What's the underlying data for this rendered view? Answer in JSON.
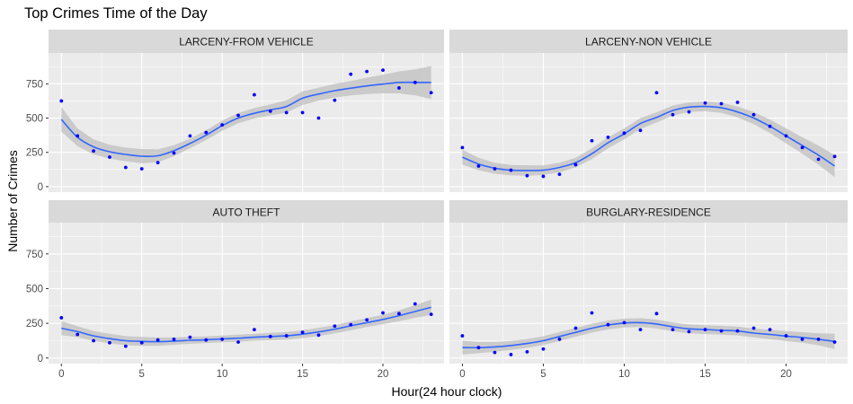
{
  "chart_data": {
    "type": "scatter",
    "title": "Top Crimes Time of the Day",
    "xlabel": "Hour(24 hour clock)",
    "ylabel": "Number of Crimes",
    "xlim": [
      -0.8,
      23.8
    ],
    "ylim": [
      -40,
      975
    ],
    "x_ticks": [
      0,
      5,
      10,
      15,
      20
    ],
    "y_ticks": [
      0,
      250,
      500,
      750
    ],
    "grid": true,
    "smooth": "loess with confidence band",
    "colors": {
      "panel_bg": "#ebebeb",
      "strip_bg": "#d9d9d9",
      "grid": "#ffffff",
      "points": "#0000ff",
      "smooth_line": "#3366ff",
      "ribbon": "#bfbfbf"
    },
    "panels": [
      {
        "name": "LARCENY-FROM VEHICLE",
        "x": [
          0,
          1,
          2,
          3,
          4,
          5,
          6,
          7,
          8,
          9,
          10,
          11,
          12,
          13,
          14,
          15,
          16,
          17,
          18,
          19,
          20,
          21,
          22,
          23
        ],
        "points": [
          625,
          370,
          260,
          215,
          140,
          130,
          175,
          245,
          370,
          395,
          450,
          520,
          670,
          550,
          540,
          540,
          500,
          630,
          820,
          840,
          850,
          720,
          760,
          685
        ],
        "smooth": [
          490,
          360,
          290,
          255,
          235,
          222,
          225,
          262,
          315,
          375,
          445,
          500,
          535,
          560,
          585,
          645,
          675,
          700,
          718,
          735,
          748,
          760,
          760,
          760
        ],
        "lower": [
          400,
          295,
          235,
          205,
          185,
          170,
          178,
          222,
          280,
          340,
          408,
          462,
          497,
          520,
          540,
          595,
          628,
          650,
          665,
          675,
          680,
          680,
          665,
          640
        ],
        "upper": [
          580,
          425,
          345,
          305,
          285,
          274,
          272,
          302,
          350,
          410,
          482,
          538,
          573,
          600,
          630,
          695,
          722,
          750,
          771,
          795,
          816,
          840,
          855,
          880
        ]
      },
      {
        "name": "LARCENY-NON VEHICLE",
        "x": [
          0,
          1,
          2,
          3,
          4,
          5,
          6,
          7,
          8,
          9,
          10,
          11,
          12,
          13,
          14,
          15,
          16,
          17,
          18,
          19,
          20,
          21,
          22,
          23
        ],
        "points": [
          285,
          150,
          130,
          120,
          80,
          75,
          90,
          160,
          335,
          360,
          390,
          410,
          685,
          525,
          545,
          610,
          605,
          615,
          525,
          440,
          370,
          285,
          200,
          220
        ],
        "smooth": [
          215,
          165,
          135,
          120,
          118,
          120,
          140,
          175,
          240,
          320,
          385,
          460,
          505,
          555,
          580,
          585,
          575,
          545,
          500,
          440,
          370,
          300,
          230,
          150
        ],
        "lower": [
          160,
          120,
          95,
          82,
          80,
          85,
          105,
          140,
          200,
          280,
          345,
          420,
          468,
          518,
          545,
          550,
          538,
          505,
          455,
          390,
          315,
          240,
          160,
          70
        ],
        "upper": [
          270,
          210,
          175,
          158,
          156,
          155,
          175,
          210,
          280,
          360,
          425,
          500,
          542,
          592,
          615,
          620,
          612,
          585,
          545,
          490,
          425,
          360,
          300,
          230
        ]
      },
      {
        "name": "AUTO THEFT",
        "x": [
          0,
          1,
          2,
          3,
          4,
          5,
          6,
          7,
          8,
          9,
          10,
          11,
          12,
          13,
          14,
          15,
          16,
          17,
          18,
          19,
          20,
          21,
          22,
          23
        ],
        "points": [
          290,
          170,
          125,
          110,
          85,
          110,
          130,
          135,
          150,
          130,
          135,
          115,
          205,
          155,
          160,
          185,
          165,
          230,
          240,
          275,
          325,
          320,
          390,
          315
        ],
        "smooth": [
          215,
          190,
          160,
          140,
          125,
          120,
          118,
          122,
          128,
          132,
          138,
          143,
          150,
          155,
          160,
          172,
          188,
          208,
          232,
          255,
          278,
          305,
          335,
          365
        ],
        "lower": [
          165,
          150,
          125,
          105,
          92,
          88,
          88,
          95,
          103,
          108,
          114,
          118,
          125,
          128,
          133,
          144,
          158,
          178,
          200,
          223,
          244,
          266,
          290,
          310
        ],
        "upper": [
          265,
          230,
          195,
          175,
          158,
          152,
          148,
          149,
          153,
          156,
          162,
          168,
          175,
          182,
          187,
          200,
          218,
          238,
          264,
          287,
          312,
          344,
          380,
          420
        ]
      },
      {
        "name": "BURGLARY-RESIDENCE",
        "x": [
          0,
          1,
          2,
          3,
          4,
          5,
          6,
          7,
          8,
          9,
          10,
          11,
          12,
          13,
          14,
          15,
          16,
          17,
          18,
          19,
          20,
          21,
          22,
          23
        ],
        "points": [
          160,
          75,
          40,
          25,
          45,
          65,
          135,
          215,
          325,
          240,
          255,
          205,
          320,
          205,
          190,
          205,
          195,
          195,
          215,
          205,
          160,
          135,
          135,
          115
        ],
        "smooth": [
          75,
          75,
          80,
          90,
          105,
          125,
          155,
          185,
          215,
          238,
          252,
          255,
          245,
          225,
          210,
          205,
          200,
          195,
          180,
          170,
          158,
          148,
          135,
          120
        ],
        "lower": [
          25,
          35,
          45,
          58,
          73,
          93,
          123,
          153,
          183,
          206,
          220,
          223,
          213,
          193,
          178,
          173,
          168,
          163,
          148,
          136,
          122,
          110,
          92,
          65
        ],
        "upper": [
          125,
          115,
          115,
          122,
          137,
          157,
          187,
          217,
          247,
          270,
          284,
          287,
          277,
          257,
          242,
          237,
          232,
          227,
          212,
          204,
          194,
          186,
          178,
          175
        ]
      }
    ]
  }
}
